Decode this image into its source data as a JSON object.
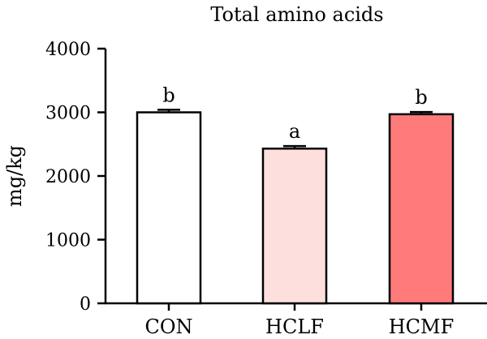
{
  "chart_data": {
    "type": "bar",
    "title": "Total  amino acids",
    "xlabel": "",
    "ylabel": "mg/kg",
    "categories": [
      "CON",
      "HCLF",
      "HCMF"
    ],
    "values": [
      3000,
      2430,
      2970
    ],
    "errors": [
      40,
      40,
      35
    ],
    "significance_labels": [
      "b",
      "a",
      "b"
    ],
    "bar_colors": [
      "#ffffff",
      "#fde0de",
      "#ff7b7b"
    ],
    "bar_edge_color": "#000000",
    "ylim": [
      0,
      4000
    ],
    "yticks": [
      0,
      1000,
      2000,
      3000,
      4000
    ],
    "ytick_labels": [
      "0",
      "1000",
      "2000",
      "3000",
      "4000"
    ],
    "grid": false,
    "legend": "none"
  }
}
